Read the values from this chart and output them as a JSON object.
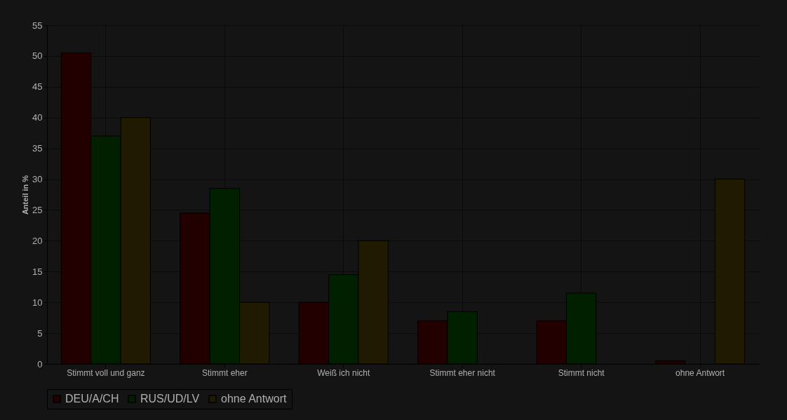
{
  "chart_data": {
    "type": "bar",
    "ylabel": "Anteil in %",
    "categories": [
      "Stimmt voll und ganz",
      "Stimmt eher",
      "Weiß ich nicht",
      "Stimmt eher nicht",
      "Stimmt nicht",
      "ohne Antwort"
    ],
    "series": [
      {
        "name": "DEU/A/CH",
        "color": "#220000",
        "values": [
          50.5,
          24.5,
          10,
          7,
          7,
          0.5
        ]
      },
      {
        "name": "RUS/UD/LV",
        "color": "#002000",
        "values": [
          37,
          28.5,
          14.5,
          8.5,
          11.5,
          null
        ]
      },
      {
        "name": "ohne Antwort",
        "color": "#1f1a00",
        "values": [
          40,
          10,
          20,
          null,
          null,
          30
        ]
      }
    ],
    "ylim": [
      0,
      55
    ],
    "yticks": [
      0,
      5,
      10,
      15,
      20,
      25,
      30,
      35,
      40,
      45,
      50,
      55
    ],
    "grid": true,
    "legend": "bottom"
  }
}
